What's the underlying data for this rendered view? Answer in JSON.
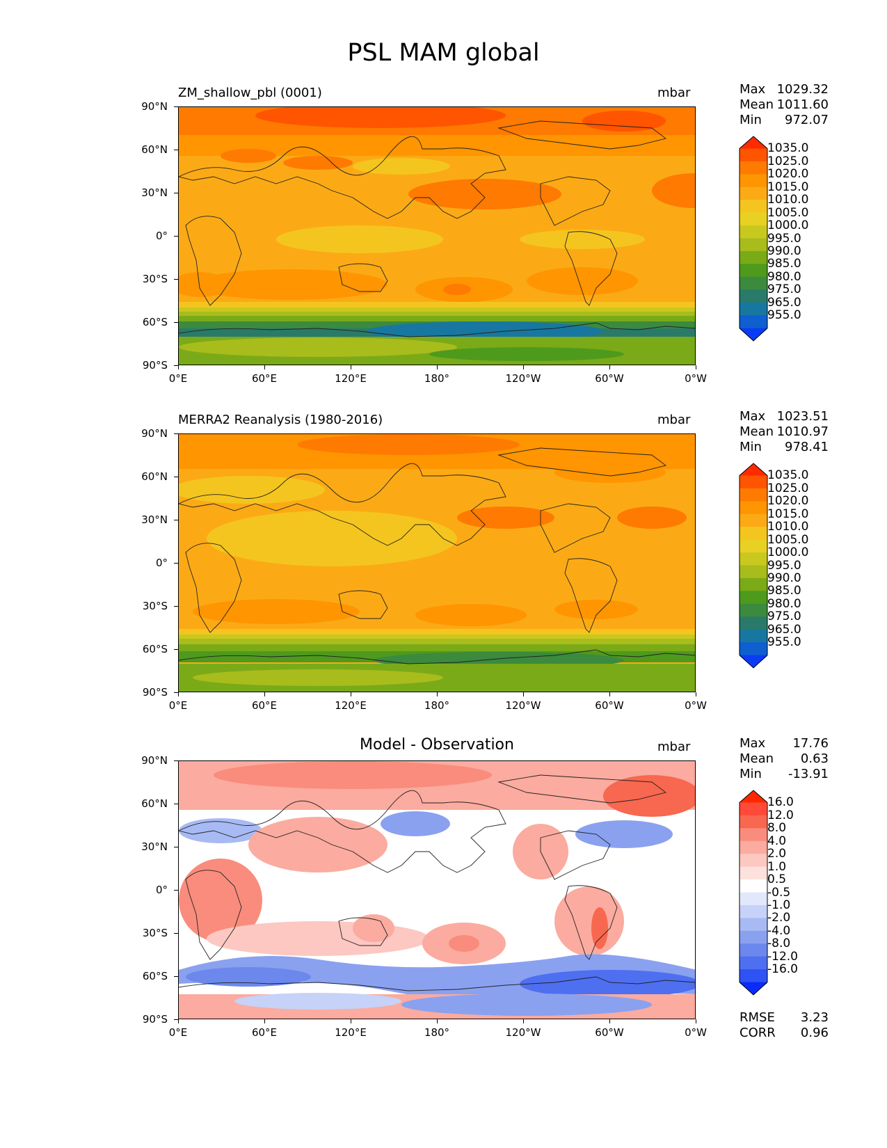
{
  "title": "PSL MAM global",
  "lat_ticks": [
    "90°N",
    "60°N",
    "30°N",
    "0°",
    "30°S",
    "60°S",
    "90°S"
  ],
  "lon_ticks": [
    "0°E",
    "60°E",
    "120°E",
    "180°",
    "120°W",
    "60°W",
    "0°W"
  ],
  "panels": [
    {
      "id": "model",
      "title": "ZM_shallow_pbl (0001)",
      "units": "mbar",
      "stats": [
        {
          "label": "Max",
          "value": "1029.32"
        },
        {
          "label": "Mean",
          "value": "1011.60"
        },
        {
          "label": "Min",
          "value": "972.07"
        }
      ],
      "colorbar": {
        "labels": [
          "1035.0",
          "1025.0",
          "1020.0",
          "1015.0",
          "1010.0",
          "1005.0",
          "1000.0",
          "995.0",
          "990.0",
          "985.0",
          "980.0",
          "975.0",
          "965.0",
          "955.0"
        ],
        "colors": [
          "#ff2a00",
          "#ff5400",
          "#ff7a00",
          "#ff9500",
          "#fbaa15",
          "#f4c51f",
          "#e8d123",
          "#c9c81f",
          "#a8bc1c",
          "#7aaa18",
          "#4e9a1c",
          "#3b8a3e",
          "#2a7a6a",
          "#1877a0",
          "#0f5fd0",
          "#0a3cf5"
        ]
      },
      "extra_stats": []
    },
    {
      "id": "obs",
      "title": "MERRA2 Reanalysis (1980-2016)",
      "units": "mbar",
      "stats": [
        {
          "label": "Max",
          "value": "1023.51"
        },
        {
          "label": "Mean",
          "value": "1010.97"
        },
        {
          "label": "Min",
          "value": "978.41"
        }
      ],
      "colorbar": {
        "labels": [
          "1035.0",
          "1025.0",
          "1020.0",
          "1015.0",
          "1010.0",
          "1005.0",
          "1000.0",
          "995.0",
          "990.0",
          "985.0",
          "980.0",
          "975.0",
          "965.0",
          "955.0"
        ],
        "colors": [
          "#ff2a00",
          "#ff5400",
          "#ff7a00",
          "#ff9500",
          "#fbaa15",
          "#f4c51f",
          "#e8d123",
          "#c9c81f",
          "#a8bc1c",
          "#7aaa18",
          "#4e9a1c",
          "#3b8a3e",
          "#2a7a6a",
          "#1877a0",
          "#0f5fd0",
          "#0a3cf5"
        ]
      },
      "extra_stats": []
    },
    {
      "id": "diff",
      "title": "Model - Observation",
      "units": "mbar",
      "stats": [
        {
          "label": "Max",
          "value": "17.76"
        },
        {
          "label": "Mean",
          "value": "0.63"
        },
        {
          "label": "Min",
          "value": "-13.91"
        }
      ],
      "colorbar": {
        "labels": [
          "16.0",
          "12.0",
          "8.0",
          "4.0",
          "2.0",
          "1.0",
          "0.5",
          "-0.5",
          "-1.0",
          "-2.0",
          "-4.0",
          "-8.0",
          "-12.0",
          "-16.0"
        ],
        "colors": [
          "#ff2600",
          "#ff4a3a",
          "#f8674f",
          "#f98c7c",
          "#fbab9f",
          "#fcc8c1",
          "#fde1dd",
          "#ffffff",
          "#e2e8fb",
          "#c6d2f8",
          "#a8baf4",
          "#8aa1f0",
          "#6c88ec",
          "#4e6ff0",
          "#2f52f4",
          "#0a2cf8"
        ]
      },
      "extra_stats": [
        {
          "label": "RMSE",
          "value": "3.23"
        },
        {
          "label": "CORR",
          "value": "0.96"
        }
      ]
    }
  ]
}
